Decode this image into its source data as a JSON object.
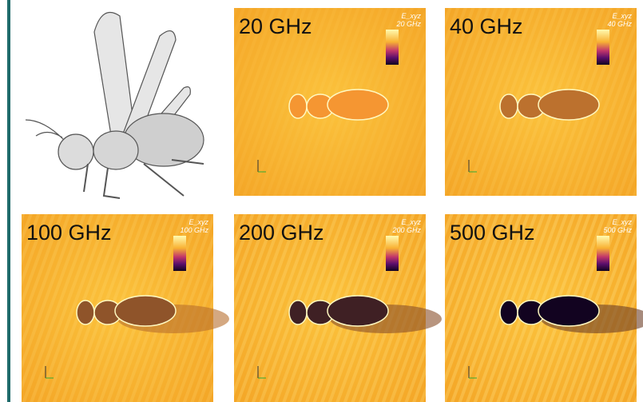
{
  "panels": [
    {
      "label": "20 GHz",
      "colorbar_title": "E_xyz",
      "colorbar_label": "20 GHz"
    },
    {
      "label": "40 GHz",
      "colorbar_title": "E_xyz",
      "colorbar_label": "40 GHz"
    },
    {
      "label": "100 GHz",
      "colorbar_title": "E_xyz",
      "colorbar_label": "100 GHz"
    },
    {
      "label": "200 GHz",
      "colorbar_title": "E_xyz",
      "colorbar_label": "200 GHz"
    },
    {
      "label": "500 GHz",
      "colorbar_title": "E_xyz",
      "colorbar_label": "500 GHz"
    }
  ]
}
